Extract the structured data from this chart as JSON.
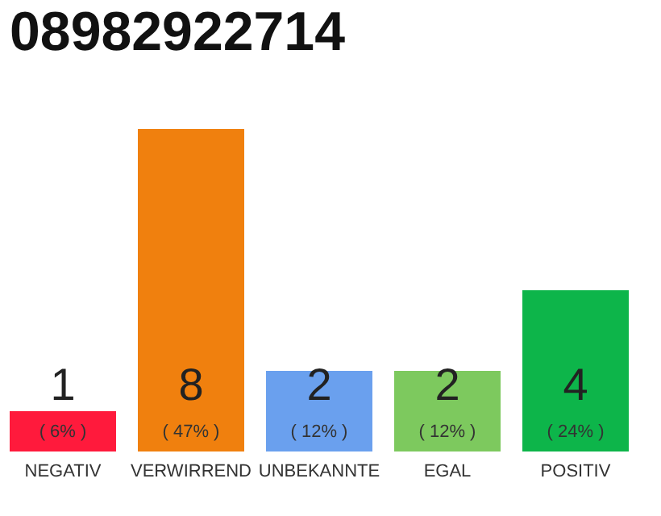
{
  "chart_data": {
    "type": "bar",
    "title": "08982922714",
    "categories": [
      "NEGATIV",
      "VERWIRREND",
      "UNBEKANNTE",
      "EGAL",
      "POSITIV"
    ],
    "values": [
      1,
      8,
      2,
      2,
      4
    ],
    "colors": [
      "#ff1a3c",
      "#f0800e",
      "#6aa0ee",
      "#7dc95e",
      "#0db54a"
    ],
    "ylim": [
      0,
      8
    ],
    "tick_labels": "x",
    "data_labels": true,
    "annotations": [
      "( 6% )",
      "( 47% )",
      "( 12% )",
      "( 12% )",
      "( 24% )"
    ]
  }
}
